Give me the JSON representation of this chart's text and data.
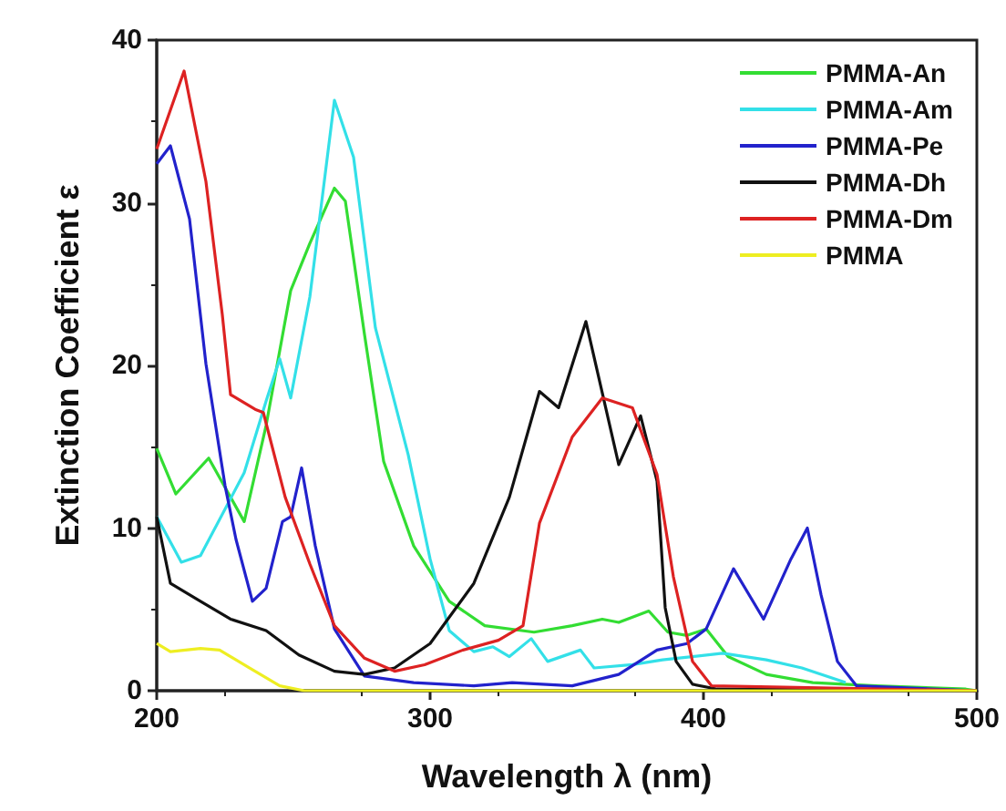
{
  "chart_data": {
    "type": "line",
    "xlabel": "Wavelength λ (nm)",
    "ylabel": "Extinction Coefficient ε",
    "xlim": [
      200,
      500
    ],
    "xticks": [
      200,
      300,
      400,
      500
    ],
    "ylim": [
      0,
      40
    ],
    "yticks": [
      0,
      10,
      20,
      30,
      40
    ],
    "grid": false,
    "legend": "top right",
    "marker": "none",
    "line_style": "solid",
    "series": [
      {
        "name": "PMMA-An",
        "color": "#33dd33",
        "x": [
          200,
          207,
          219,
          232,
          240,
          249,
          256,
          265,
          269,
          276,
          283,
          294,
          307,
          320,
          338,
          352,
          363,
          369,
          380,
          387,
          394,
          401,
          409,
          423,
          440,
          463,
          496,
          500
        ],
        "values": [
          14.9,
          12.1,
          14.3,
          10.4,
          16.3,
          24.6,
          27.5,
          30.9,
          30.1,
          21.9,
          14.1,
          8.9,
          5.5,
          4.0,
          3.6,
          4.0,
          4.4,
          4.2,
          4.9,
          3.6,
          3.4,
          3.8,
          2.1,
          1.0,
          0.5,
          0.3,
          0.1,
          0.0
        ]
      },
      {
        "name": "PMMA-Am",
        "color": "#33e0e8",
        "x": [
          200,
          209,
          216,
          232,
          240,
          245,
          249,
          256,
          265,
          272,
          280,
          292,
          300,
          307,
          316,
          323,
          329,
          337,
          343,
          355,
          360,
          374,
          385,
          407,
          423,
          436,
          452
        ],
        "values": [
          10.7,
          7.9,
          8.3,
          13.4,
          17.8,
          20.4,
          18.0,
          24.2,
          36.3,
          32.8,
          22.3,
          14.5,
          8.1,
          3.7,
          2.4,
          2.7,
          2.1,
          3.2,
          1.8,
          2.5,
          1.4,
          1.6,
          1.9,
          2.3,
          1.9,
          1.4,
          0.5
        ]
      },
      {
        "name": "PMMA-Pe",
        "color": "#2222cc",
        "x": [
          200,
          205,
          212,
          218,
          225,
          229,
          235,
          240,
          246,
          249,
          253,
          258,
          265,
          276,
          294,
          316,
          330,
          352,
          369,
          383,
          394,
          401,
          411,
          422,
          432,
          438,
          443,
          449,
          456,
          500
        ],
        "values": [
          32.4,
          33.5,
          29.0,
          20.1,
          12.6,
          9.3,
          5.5,
          6.3,
          10.4,
          10.7,
          13.7,
          8.9,
          3.8,
          0.9,
          0.5,
          0.3,
          0.5,
          0.3,
          1.0,
          2.5,
          2.9,
          3.8,
          7.5,
          4.4,
          8.1,
          10.0,
          5.9,
          1.8,
          0.3,
          0
        ]
      },
      {
        "name": "PMMA-Dh",
        "color": "#111111",
        "x": [
          200,
          205,
          216,
          227,
          240,
          252,
          265,
          276,
          287,
          300,
          316,
          329,
          340,
          347,
          357,
          369,
          377,
          383,
          386,
          390,
          396,
          405,
          500
        ],
        "values": [
          10.7,
          6.6,
          5.5,
          4.4,
          3.7,
          2.2,
          1.2,
          1.0,
          1.4,
          2.9,
          6.6,
          11.9,
          18.4,
          17.4,
          22.7,
          13.9,
          16.9,
          12.9,
          5.1,
          1.8,
          0.4,
          0.1,
          0
        ]
      },
      {
        "name": "PMMA-Dm",
        "color": "#dd2222",
        "x": [
          200,
          210,
          218,
          224,
          227,
          236,
          239,
          247,
          256,
          265,
          276,
          287,
          298,
          312,
          325,
          334,
          340,
          352,
          363,
          374,
          383,
          389,
          396,
          403,
          500
        ],
        "values": [
          33.3,
          38.1,
          31.3,
          23.1,
          18.2,
          17.3,
          17.1,
          11.9,
          7.8,
          4.0,
          2.0,
          1.2,
          1.6,
          2.5,
          3.1,
          4.0,
          10.3,
          15.6,
          18.0,
          17.4,
          13.3,
          7.0,
          1.8,
          0.3,
          0
        ]
      },
      {
        "name": "PMMA",
        "color": "#eeee22",
        "x": [
          200,
          205,
          216,
          223,
          234,
          245,
          254,
          500
        ],
        "values": [
          2.9,
          2.4,
          2.6,
          2.5,
          1.4,
          0.3,
          0,
          0
        ]
      }
    ]
  }
}
